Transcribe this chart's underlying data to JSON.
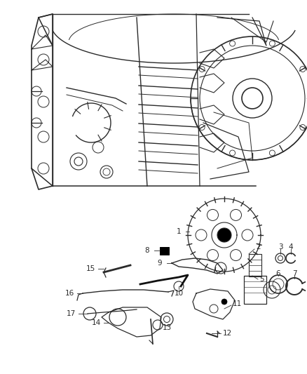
{
  "bg_color": "#ffffff",
  "line_color": "#2a2a2a",
  "fig_width": 4.38,
  "fig_height": 5.33,
  "dpi": 100
}
